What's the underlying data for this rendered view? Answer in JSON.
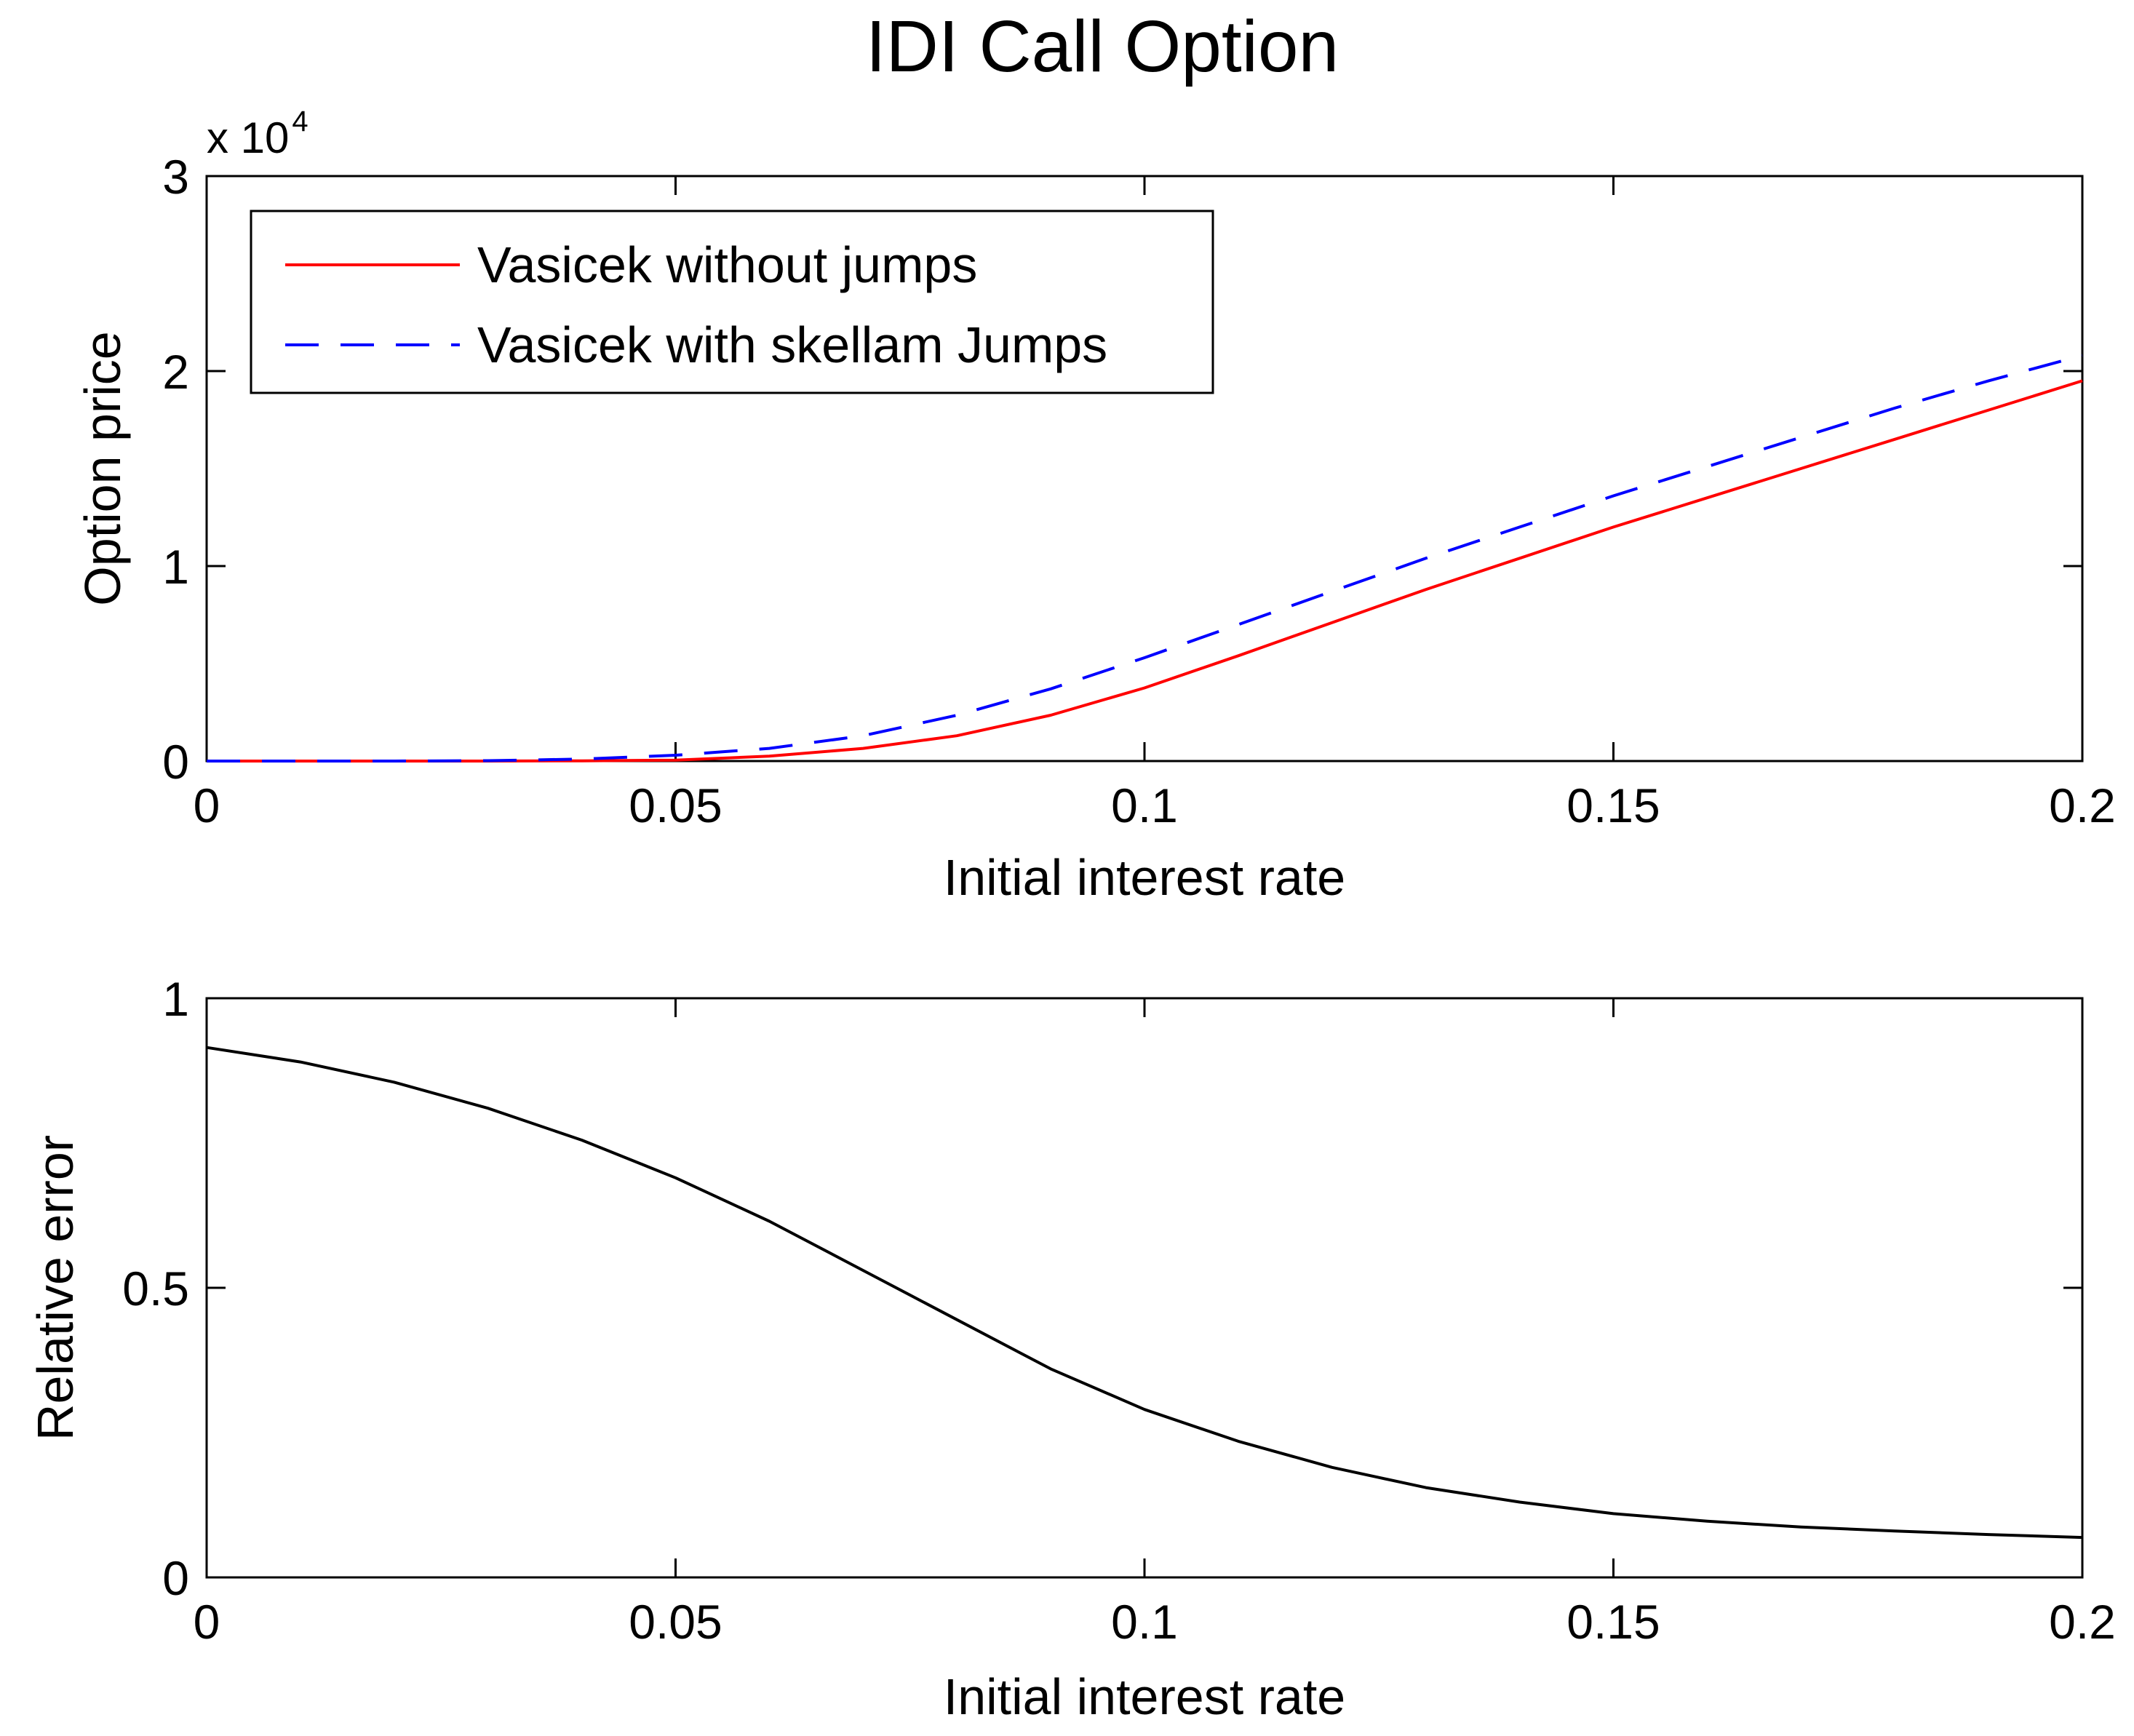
{
  "title": "IDI Call Option",
  "chart_data": [
    {
      "type": "line",
      "xlabel": "Initial interest rate",
      "ylabel": "Option price",
      "xlim": [
        0,
        0.2
      ],
      "ylim": [
        0,
        3
      ],
      "y_multiplier": {
        "base": "x 10",
        "exponent": "4"
      },
      "grid": false,
      "legend_placement": "top-left",
      "x_ticks": [
        "0",
        "0.05",
        "0.1",
        "0.15",
        "0.2"
      ],
      "y_ticks": [
        "0",
        "1",
        "2",
        "3"
      ],
      "x_tick_values": [
        0,
        0.05,
        0.1,
        0.15,
        0.2
      ],
      "y_tick_values": [
        0,
        1,
        2,
        3
      ],
      "x": [
        0,
        0.01,
        0.02,
        0.03,
        0.04,
        0.05,
        0.06,
        0.07,
        0.08,
        0.09,
        0.1,
        0.11,
        0.12,
        0.13,
        0.14,
        0.15,
        0.16,
        0.17,
        0.18,
        0.19,
        0.2
      ],
      "series": [
        {
          "name": "Vasicek without jumps",
          "color": "#ff0000",
          "style": "solid",
          "values": [
            0,
            0,
            0,
            0,
            0.001,
            0.005,
            0.025,
            0.065,
            0.13,
            0.235,
            0.375,
            0.54,
            0.71,
            0.88,
            1.04,
            1.2,
            1.35,
            1.5,
            1.65,
            1.8,
            1.95
          ]
        },
        {
          "name": "Vasicek with skellam Jumps",
          "color": "#0000ff",
          "style": "dashed",
          "values": [
            0,
            0,
            0,
            0.002,
            0.01,
            0.03,
            0.065,
            0.13,
            0.235,
            0.37,
            0.53,
            0.7,
            0.87,
            1.04,
            1.2,
            1.36,
            1.51,
            1.66,
            1.81,
            1.95,
            2.08
          ]
        }
      ]
    },
    {
      "type": "line",
      "xlabel": "Initial interest rate",
      "ylabel": "Relative error",
      "xlim": [
        0,
        0.2
      ],
      "ylim": [
        0,
        1
      ],
      "grid": false,
      "x_ticks": [
        "0",
        "0.05",
        "0.1",
        "0.15",
        "0.2"
      ],
      "y_ticks": [
        "0",
        "0.5",
        "1"
      ],
      "x_tick_values": [
        0,
        0.05,
        0.1,
        0.15,
        0.2
      ],
      "y_tick_values": [
        0,
        0.5,
        1
      ],
      "x": [
        0,
        0.01,
        0.02,
        0.03,
        0.04,
        0.05,
        0.06,
        0.07,
        0.08,
        0.09,
        0.1,
        0.11,
        0.12,
        0.13,
        0.14,
        0.15,
        0.16,
        0.17,
        0.18,
        0.19,
        0.2
      ],
      "series": [
        {
          "name": "Relative error",
          "color": "#000000",
          "style": "solid",
          "values": [
            0.915,
            0.89,
            0.855,
            0.81,
            0.755,
            0.69,
            0.615,
            0.53,
            0.445,
            0.36,
            0.29,
            0.235,
            0.19,
            0.155,
            0.13,
            0.11,
            0.097,
            0.087,
            0.08,
            0.074,
            0.069
          ]
        }
      ]
    }
  ]
}
